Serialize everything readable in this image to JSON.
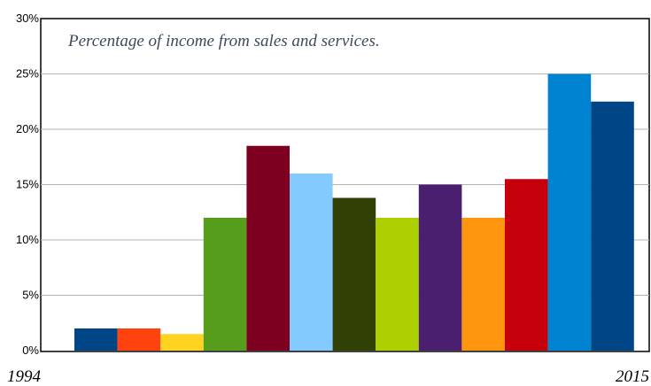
{
  "chart_data": {
    "type": "bar",
    "title": "Percentage of income from sales and services.",
    "x_start_label": "1994",
    "x_end_label": "2015",
    "ylim": [
      0,
      30
    ],
    "yticks": [
      "0%",
      "5%",
      "10%",
      "15%",
      "20%",
      "25%",
      "30%"
    ],
    "grid": true,
    "values": [
      2,
      2,
      1.5,
      12,
      18.5,
      16,
      13.8,
      12,
      15,
      12,
      15.5,
      25,
      22.5
    ],
    "colors": [
      "#004586",
      "#ff420e",
      "#ffd320",
      "#579d1c",
      "#7e0021",
      "#83caff",
      "#314004",
      "#aecf00",
      "#4b1f6f",
      "#ff950e",
      "#c5000b",
      "#0084d1",
      "#004586"
    ]
  }
}
